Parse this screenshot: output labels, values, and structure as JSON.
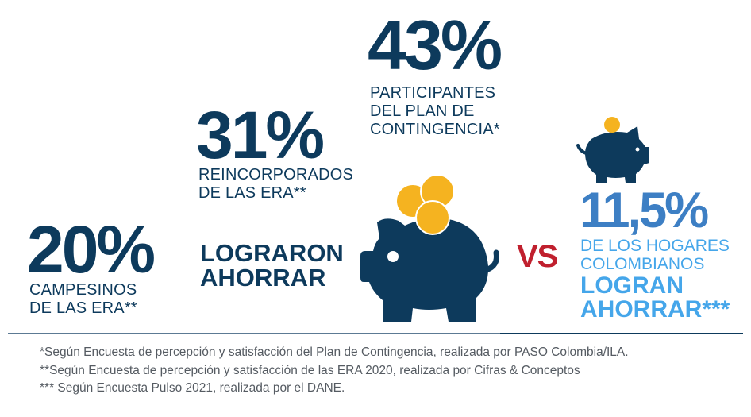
{
  "stats": [
    {
      "value": "43%",
      "lines": [
        "PARTICIPANTES",
        "DEL PLAN DE",
        "CONTINGENCIA*"
      ]
    },
    {
      "value": "31%",
      "lines": [
        "REINCORPORADOS",
        "DE LAS ERA**"
      ]
    },
    {
      "value": "20%",
      "lines": [
        "CAMPESINOS",
        "DE LAS ERA**"
      ]
    }
  ],
  "headline": [
    "LOGRARON",
    "AHORRAR"
  ],
  "vs": "VS",
  "comparison": {
    "value": "11,5%",
    "lines": [
      "DE LOS HOGARES",
      "COLOMBIANOS"
    ],
    "emphasis": [
      "LOGRAN",
      "AHORRAR***"
    ]
  },
  "footnotes": [
    "*Según Encuesta de percepción y satisfacción del Plan de Contingencia, realizada por PASO Colombia/ILA.",
    "**Según Encuesta de percepción y satisfacción de las ERA 2020, realizada por Cifras & Conceptos",
    "*** Según Encuesta Pulso 2021, realizada por el DANE."
  ],
  "colors": {
    "navy": "#0d3a5c",
    "blue": "#3d7fc4",
    "light_blue": "#45a6ea",
    "red": "#c0202e",
    "gold": "#f5b320"
  }
}
